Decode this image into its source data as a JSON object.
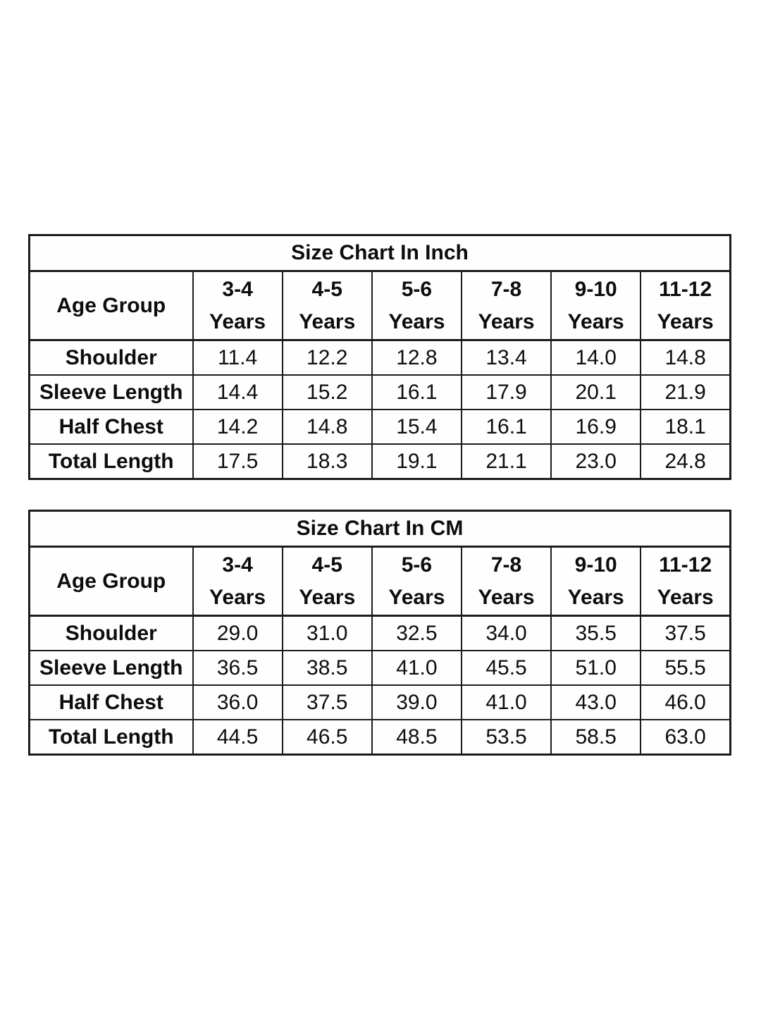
{
  "document": {
    "background_color": "#ffffff",
    "text_color": "#0d0d0d",
    "border_color": "#1c1c1c"
  },
  "tables": [
    {
      "title": "Size Chart In Inch",
      "corner_label": "Age Group",
      "age_columns": [
        {
          "range": "3-4",
          "unit": "Years"
        },
        {
          "range": "4-5",
          "unit": "Years"
        },
        {
          "range": "5-6",
          "unit": "Years"
        },
        {
          "range": "7-8",
          "unit": "Years"
        },
        {
          "range": "9-10",
          "unit": "Years"
        },
        {
          "range": "11-12",
          "unit": "Years"
        }
      ],
      "rows": [
        {
          "label": "Shoulder",
          "values": [
            "11.4",
            "12.2",
            "12.8",
            "13.4",
            "14.0",
            "14.8"
          ]
        },
        {
          "label": "Sleeve Length",
          "values": [
            "14.4",
            "15.2",
            "16.1",
            "17.9",
            "20.1",
            "21.9"
          ]
        },
        {
          "label": "Half Chest",
          "values": [
            "14.2",
            "14.8",
            "15.4",
            "16.1",
            "16.9",
            "18.1"
          ]
        },
        {
          "label": "Total Length",
          "values": [
            "17.5",
            "18.3",
            "19.1",
            "21.1",
            "23.0",
            "24.8"
          ]
        }
      ]
    },
    {
      "title": "Size Chart In CM",
      "corner_label": "Age Group",
      "age_columns": [
        {
          "range": "3-4",
          "unit": "Years"
        },
        {
          "range": "4-5",
          "unit": "Years"
        },
        {
          "range": "5-6",
          "unit": "Years"
        },
        {
          "range": "7-8",
          "unit": "Years"
        },
        {
          "range": "9-10",
          "unit": "Years"
        },
        {
          "range": "11-12",
          "unit": "Years"
        }
      ],
      "rows": [
        {
          "label": "Shoulder",
          "values": [
            "29.0",
            "31.0",
            "32.5",
            "34.0",
            "35.5",
            "37.5"
          ]
        },
        {
          "label": "Sleeve Length",
          "values": [
            "36.5",
            "38.5",
            "41.0",
            "45.5",
            "51.0",
            "55.5"
          ]
        },
        {
          "label": "Half Chest",
          "values": [
            "36.0",
            "37.5",
            "39.0",
            "41.0",
            "43.0",
            "46.0"
          ]
        },
        {
          "label": "Total Length",
          "values": [
            "44.5",
            "46.5",
            "48.5",
            "53.5",
            "58.5",
            "63.0"
          ]
        }
      ]
    }
  ]
}
